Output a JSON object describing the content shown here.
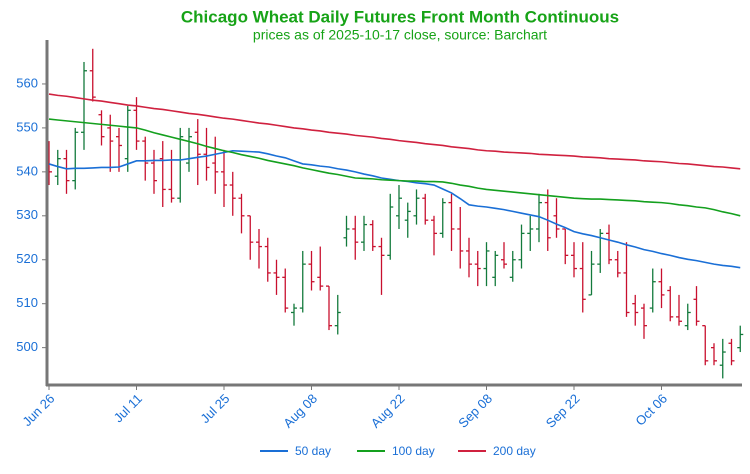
{
  "chart_data": {
    "type": "ohlc",
    "title": "Chicago Wheat Daily Futures Front Month Continuous",
    "subtitle": "prices as of 2025-10-17 close, source: Barchart",
    "categories": [
      "Jun 26",
      null,
      null,
      null,
      null,
      null,
      null,
      null,
      null,
      null,
      "Jul 11",
      null,
      null,
      null,
      null,
      null,
      null,
      null,
      null,
      null,
      "Jul 25",
      null,
      null,
      null,
      null,
      null,
      null,
      null,
      null,
      null,
      "Aug 08",
      null,
      null,
      null,
      null,
      null,
      null,
      null,
      null,
      null,
      "Aug 22",
      null,
      null,
      null,
      null,
      null,
      null,
      null,
      null,
      null,
      "Sep 08",
      null,
      null,
      null,
      null,
      null,
      null,
      null,
      null,
      null,
      "Sep 22",
      null,
      null,
      null,
      null,
      null,
      null,
      null,
      null,
      null,
      "Oct 06",
      null,
      null,
      null,
      null,
      null,
      null,
      null,
      null,
      null
    ],
    "open": [
      545,
      539,
      543,
      538,
      549,
      563,
      553,
      550,
      548,
      543,
      554,
      547,
      542,
      543,
      536,
      534,
      542,
      549,
      544,
      542,
      540,
      537,
      534,
      530,
      524,
      523,
      517,
      516,
      508,
      509,
      519,
      516,
      514,
      505,
      525,
      527,
      524,
      528,
      523,
      521,
      530,
      529,
      530,
      534,
      529,
      526,
      533,
      527,
      522,
      519,
      518,
      516,
      520,
      516,
      520,
      526,
      527,
      533,
      530,
      527,
      521,
      518,
      512,
      519,
      526,
      520,
      517,
      510,
      509,
      509,
      515,
      513,
      507,
      505,
      511,
      505,
      500,
      496,
      501,
      500
    ],
    "high": [
      547,
      545,
      545,
      550,
      565,
      568,
      554,
      553,
      550,
      555,
      557,
      548,
      545,
      547,
      545,
      550,
      550,
      552,
      550,
      548,
      545,
      540,
      535,
      530,
      527,
      525,
      520,
      518,
      510,
      522,
      522,
      523,
      514,
      512,
      530,
      530,
      530,
      529,
      525,
      535,
      537,
      533,
      536,
      535,
      530,
      534,
      535,
      532,
      525,
      522,
      524,
      522,
      524,
      522,
      528,
      530,
      535,
      536,
      534,
      527,
      524,
      524,
      522,
      527,
      528,
      522,
      524,
      512,
      510,
      518,
      518,
      514,
      512,
      510,
      514,
      505,
      501,
      502,
      502,
      505
    ],
    "low": [
      537,
      537,
      535,
      536,
      545,
      556,
      546,
      540,
      540,
      540,
      545,
      538,
      535,
      532,
      533,
      533,
      540,
      537,
      538,
      535,
      532,
      530,
      526,
      520,
      518,
      515,
      512,
      508,
      505,
      508,
      513,
      513,
      504,
      503,
      523,
      520,
      522,
      522,
      512,
      520,
      527,
      525,
      528,
      528,
      521,
      525,
      522,
      518,
      516,
      514,
      514,
      514,
      518,
      515,
      518,
      522,
      524,
      522,
      525,
      519,
      516,
      508,
      512,
      517,
      519,
      516,
      507,
      505,
      502,
      508,
      509,
      506,
      505,
      504,
      505,
      496,
      496,
      493,
      496,
      499
    ],
    "close": [
      540,
      543,
      538,
      549,
      563,
      557,
      548,
      547,
      546,
      554,
      547,
      542,
      538,
      536,
      534,
      548,
      548,
      544,
      541,
      540,
      537,
      534,
      530,
      524,
      523,
      517,
      516,
      509,
      509,
      519,
      515,
      514,
      505,
      508,
      527,
      524,
      528,
      523,
      521,
      532,
      534,
      531,
      534,
      529,
      526,
      533,
      527,
      522,
      519,
      518,
      522,
      521,
      519,
      520,
      526,
      527,
      533,
      525,
      527,
      521,
      518,
      511,
      519,
      526,
      520,
      517,
      508,
      508,
      505,
      515,
      512,
      507,
      506,
      508,
      506,
      497,
      497,
      499,
      497,
      503
    ],
    "up_color": "#137a3c",
    "down_color": "#c8102e",
    "series": [
      {
        "name": "50 day",
        "color": "#1a6fd6",
        "values": [
          541.8,
          541.2,
          540.7,
          540.8,
          540.8,
          540.9,
          541.0,
          541.0,
          541.1,
          541.8,
          542.5,
          542.5,
          542.6,
          542.6,
          542.7,
          542.7,
          543.0,
          543.3,
          543.6,
          544.0,
          544.4,
          544.8,
          544.7,
          544.6,
          544.5,
          544.1,
          543.6,
          543.2,
          542.5,
          541.8,
          541.6,
          541.3,
          541.1,
          540.7,
          540.4,
          540.0,
          539.5,
          539.1,
          538.6,
          538.3,
          538.0,
          537.8,
          537.5,
          537.3,
          537.0,
          536.1,
          535.2,
          533.9,
          532.5,
          532.2,
          532.0,
          531.7,
          531.4,
          531.0,
          530.6,
          530.2,
          529.8,
          529.0,
          528.1,
          527.3,
          526.4,
          525.9,
          525.5,
          525.0,
          524.5,
          524.0,
          523.4,
          522.9,
          522.3,
          521.9,
          521.4,
          521.0,
          520.5,
          520.1,
          519.8,
          519.4,
          519.0,
          518.7,
          518.5,
          518.2
        ]
      },
      {
        "name": "100 day",
        "color": "#14a01e",
        "values": [
          552.0,
          551.8,
          551.6,
          551.4,
          551.2,
          551.0,
          550.8,
          550.6,
          550.4,
          550.2,
          550.0,
          549.5,
          548.9,
          548.4,
          547.9,
          547.4,
          546.9,
          546.4,
          545.8,
          545.3,
          544.8,
          544.4,
          543.9,
          543.5,
          543.1,
          542.6,
          542.2,
          541.8,
          541.4,
          540.9,
          540.5,
          540.1,
          539.7,
          539.4,
          539.0,
          538.6,
          538.5,
          538.4,
          538.2,
          538.1,
          538.0,
          537.9,
          537.9,
          537.8,
          537.8,
          537.7,
          537.4,
          537.0,
          536.7,
          536.3,
          536.0,
          535.8,
          535.6,
          535.4,
          535.2,
          535.0,
          534.8,
          534.6,
          534.4,
          534.2,
          534.0,
          533.9,
          533.8,
          533.8,
          533.7,
          533.6,
          533.5,
          533.4,
          533.2,
          533.1,
          533.0,
          532.8,
          532.5,
          532.3,
          532.0,
          531.8,
          531.4,
          530.9,
          530.5,
          530.0
        ]
      },
      {
        "name": "200 day",
        "color": "#d0213f",
        "values": [
          557.7,
          557.4,
          557.2,
          556.9,
          556.6,
          556.3,
          556.1,
          555.8,
          555.5,
          555.2,
          555.0,
          554.7,
          554.4,
          554.2,
          553.9,
          553.6,
          553.3,
          553.1,
          552.8,
          552.5,
          552.2,
          552.0,
          551.7,
          551.4,
          551.1,
          550.9,
          550.6,
          550.3,
          550.0,
          549.8,
          549.5,
          549.3,
          549.0,
          548.8,
          548.6,
          548.3,
          548.1,
          547.9,
          547.6,
          547.4,
          547.1,
          546.9,
          546.7,
          546.4,
          546.2,
          546.0,
          545.7,
          545.5,
          545.3,
          545.0,
          544.8,
          544.7,
          544.5,
          544.4,
          544.3,
          544.2,
          544.0,
          543.9,
          543.8,
          543.7,
          543.6,
          543.4,
          543.3,
          543.2,
          543.0,
          542.9,
          542.8,
          542.7,
          542.5,
          542.4,
          542.3,
          542.1,
          541.9,
          541.8,
          541.6,
          541.4,
          541.2,
          541.1,
          540.9,
          540.7
        ]
      }
    ],
    "ylim": [
      491.5,
      570
    ],
    "yticks": [
      500,
      510,
      520,
      530,
      540,
      550,
      560
    ],
    "legend": "bottom"
  }
}
